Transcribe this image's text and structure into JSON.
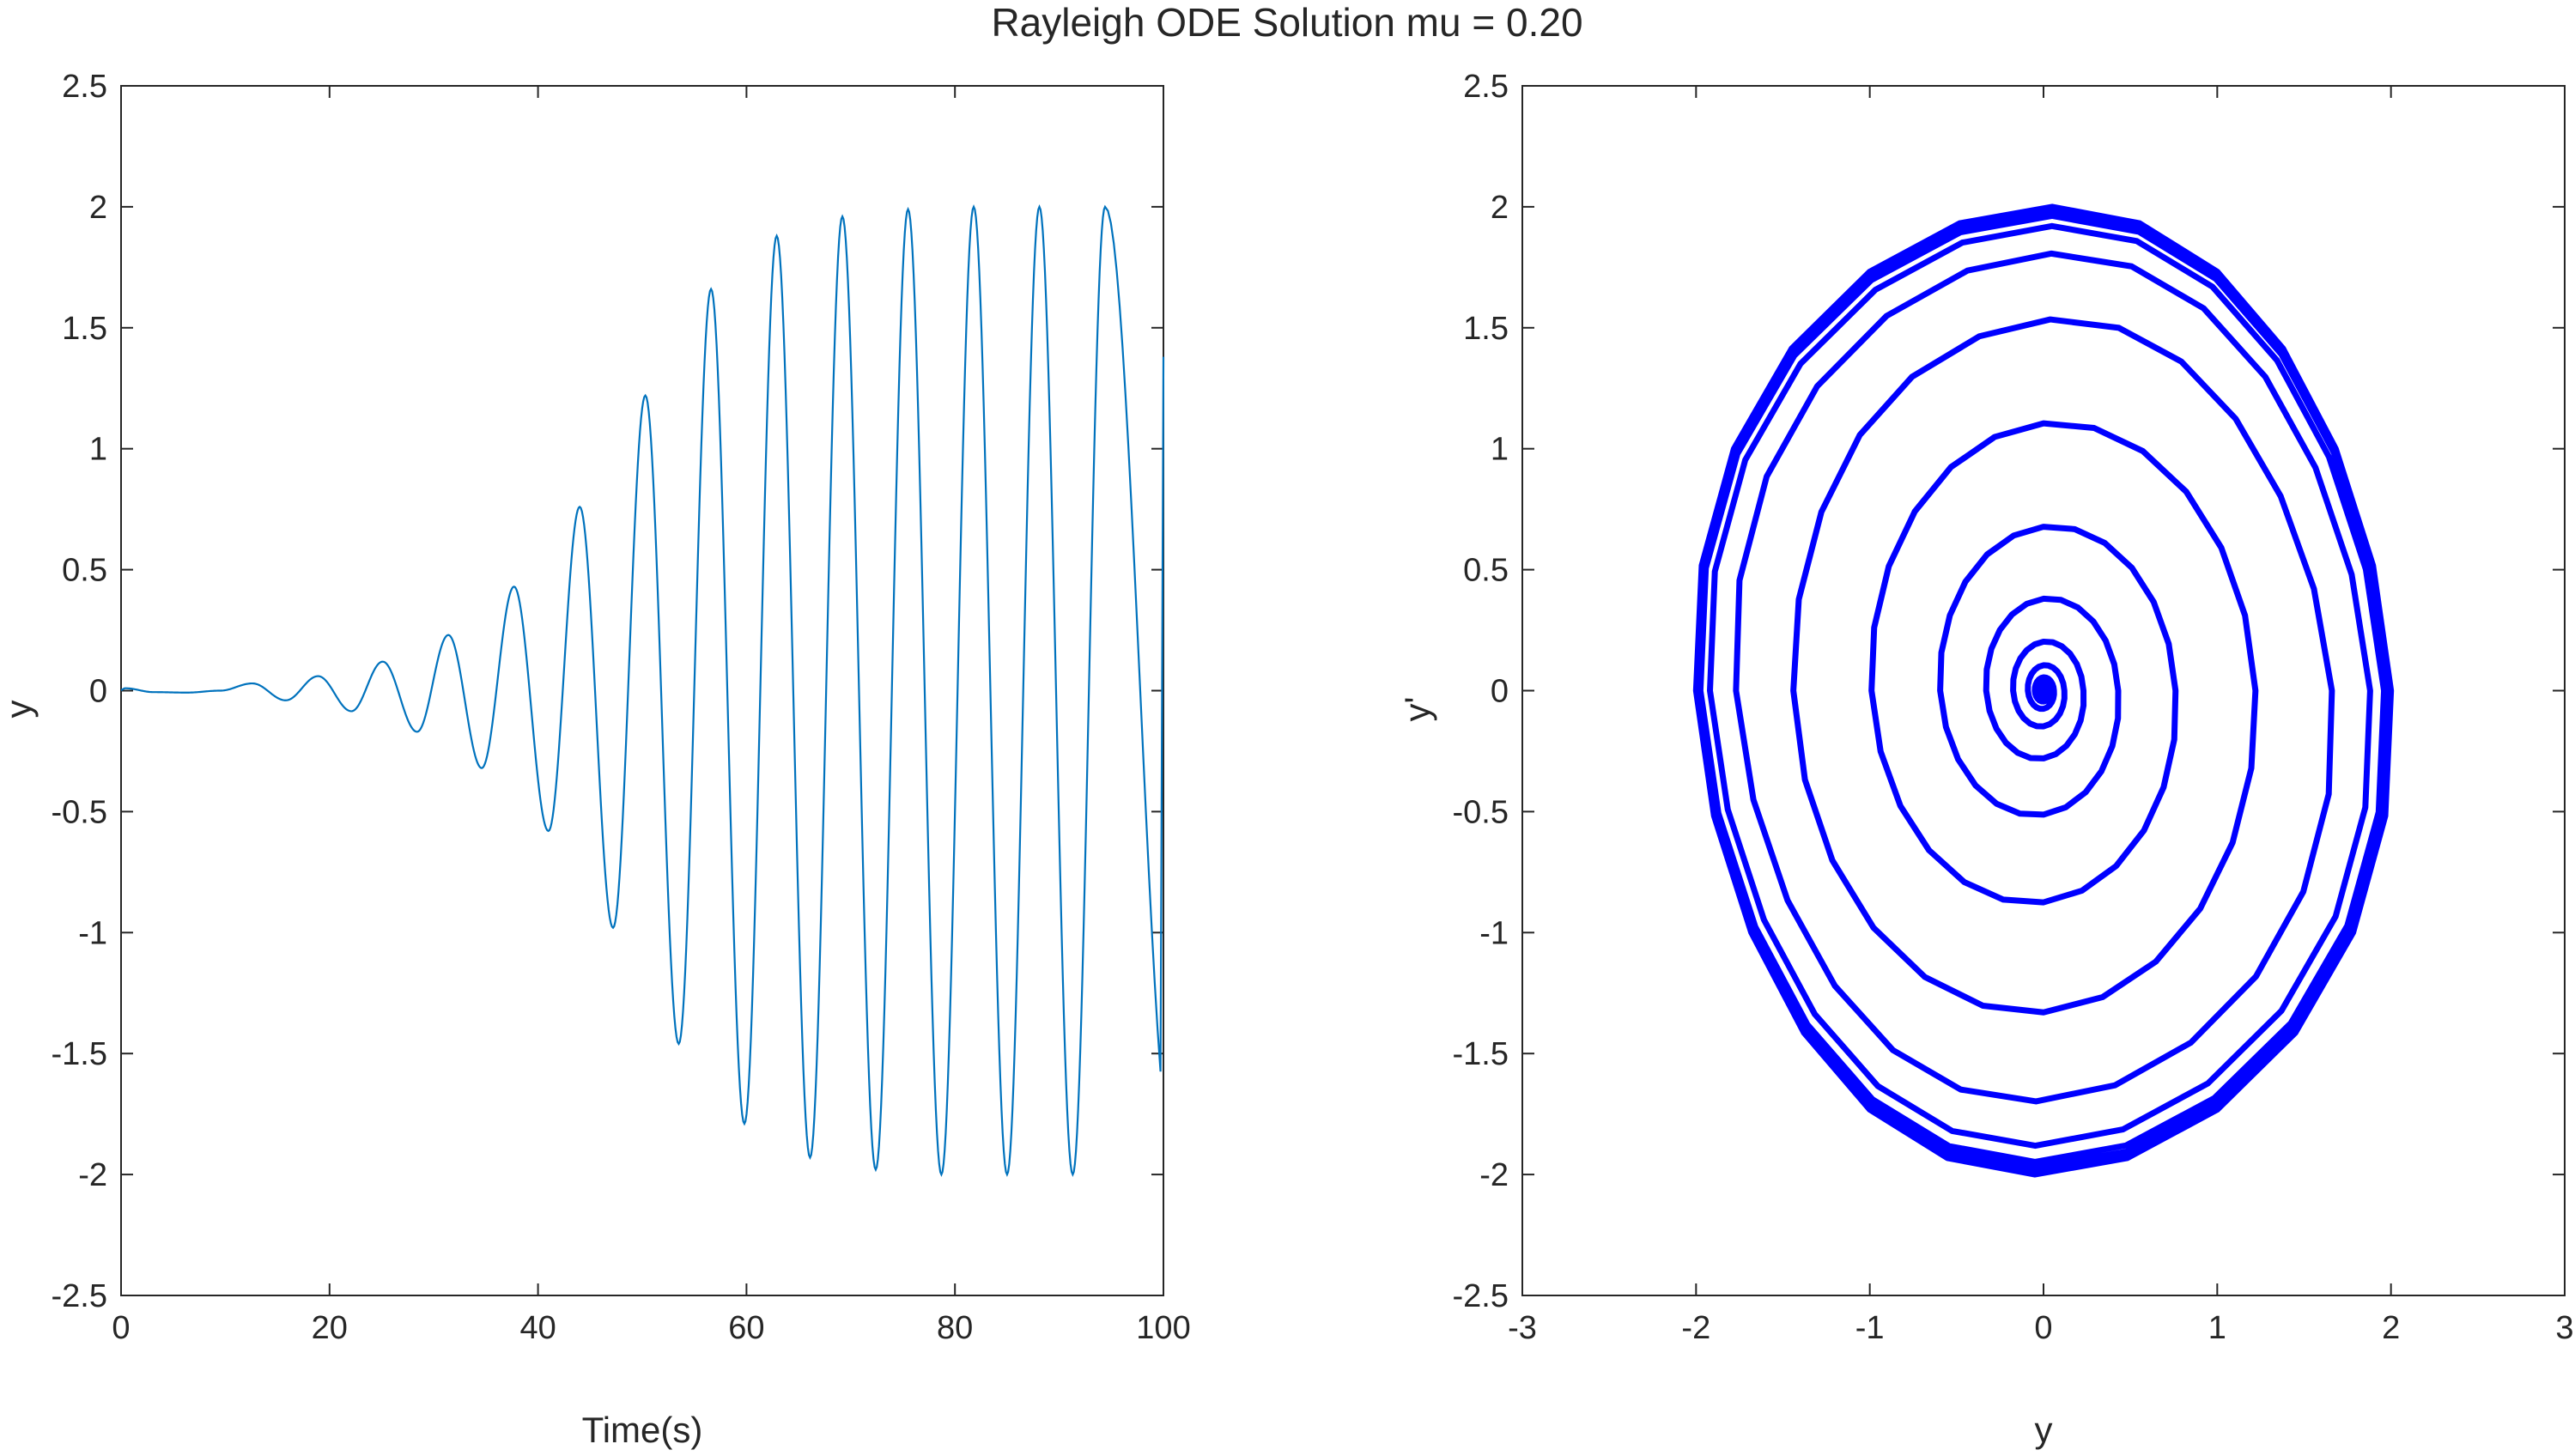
{
  "figure": {
    "title": "Rayleigh ODE Solution mu = 0.20"
  },
  "chart_data": [
    {
      "type": "line",
      "title": "",
      "xlabel": "Time(s)",
      "ylabel": "y",
      "xlim": [
        0,
        100
      ],
      "ylim": [
        -2.5,
        2.5
      ],
      "xticks": [
        "0",
        "20",
        "40",
        "60",
        "80",
        "100"
      ],
      "yticks": [
        "-2.5",
        "-2",
        "-1.5",
        "-1",
        "-0.5",
        "0",
        "0.5",
        "1",
        "1.5",
        "2",
        "2.5"
      ],
      "grid": false,
      "color": "#0072bd",
      "series": [
        {
          "peak_times": [
            0.4,
            6.3,
            12.6,
            18.9,
            25.1,
            31.4,
            37.7,
            44.0,
            50.3,
            56.6,
            62.9,
            69.2,
            75.5,
            81.8,
            88.1,
            94.4
          ],
          "peak_values": [
            0.01,
            -0.008,
            0.03,
            0.06,
            0.12,
            0.23,
            0.43,
            0.76,
            1.22,
            1.66,
            1.88,
            1.96,
            1.99,
            2.0,
            2.0,
            2.0
          ],
          "trough_times": [
            3.1,
            9.5,
            15.8,
            22.1,
            28.4,
            34.6,
            41.0,
            47.2,
            53.5,
            59.8,
            66.1,
            72.4,
            78.7,
            85.0,
            91.3
          ],
          "trough_values": [
            -0.006,
            0.0,
            -0.04,
            -0.085,
            -0.17,
            -0.32,
            -0.58,
            -0.98,
            -1.46,
            -1.79,
            -1.93,
            -1.98,
            -2.0,
            -2.0,
            -2.0
          ],
          "final_point": [
            100,
            1.38
          ]
        }
      ]
    },
    {
      "type": "line",
      "title": "",
      "xlabel": "y",
      "ylabel": "y'",
      "xlim": [
        -3,
        3
      ],
      "ylim": [
        -2.5,
        2.5
      ],
      "xticks": [
        "-3",
        "-2",
        "-1",
        "0",
        "1",
        "2",
        "3"
      ],
      "yticks": [
        "-2.5",
        "-2",
        "-1.5",
        "-1",
        "-0.5",
        "0",
        "0.5",
        "1",
        "1.5",
        "2",
        "2.5"
      ],
      "grid": false,
      "color": "#0000ff",
      "series": [
        {
          "description_amplitudes": [
            0.01,
            0.02,
            0.04,
            0.06,
            0.12,
            0.23,
            0.43,
            0.76,
            1.22,
            1.66,
            1.88,
            1.96,
            1.99,
            2.0,
            2.0
          ],
          "center": [
            0,
            0
          ]
        }
      ]
    }
  ]
}
